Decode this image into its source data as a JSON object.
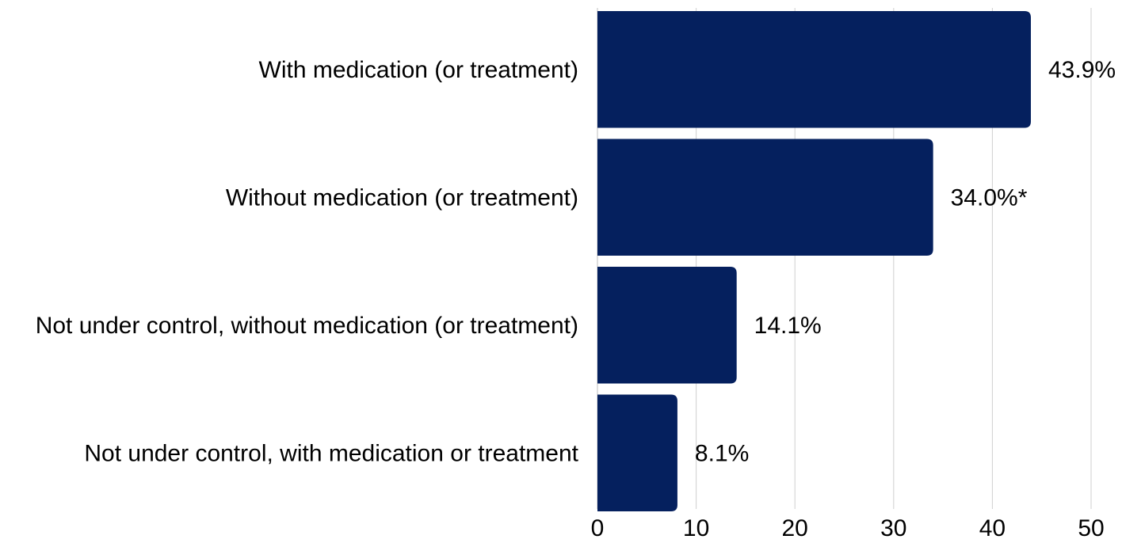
{
  "chart_data": {
    "type": "bar",
    "orientation": "horizontal",
    "categories": [
      "With medication (or treatment)",
      "Without medication (or treatment)",
      "Not under control, without medication (or treatment)",
      "Not under control, with medication or treatment"
    ],
    "values": [
      43.9,
      34.0,
      14.1,
      8.1
    ],
    "value_labels": [
      "43.9%",
      "34.0%*",
      "14.1%",
      "8.1%"
    ],
    "xlim": [
      0,
      50
    ],
    "xticks": [
      0,
      10,
      20,
      30,
      40,
      50
    ],
    "title": "",
    "xlabel": "",
    "ylabel": "",
    "grid": "vertical",
    "legend": "none",
    "bar_color": "#05205e",
    "grid_color": "#cfcfcf"
  }
}
